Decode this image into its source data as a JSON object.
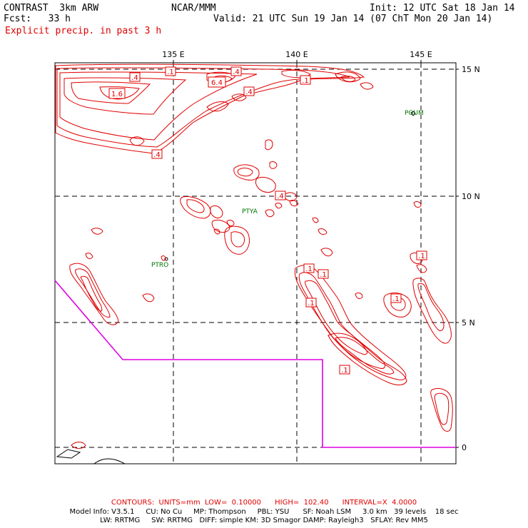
{
  "header": {
    "model": "CONTRAST  3km ARW",
    "fcst": "Fcst:   33 h",
    "center": "NCAR/MMM",
    "init": "Init: 12 UTC Sat 18 Jan 14",
    "valid": "Valid: 21 UTC Sun 19 Jan 14 (07 ChT Mon 20 Jan 14)",
    "field": "Explicit precip. in past 3 h"
  },
  "axes": {
    "lon_labels": [
      "135 E",
      "140 E",
      "145 E"
    ],
    "lat_labels": [
      "15 N",
      "10 N",
      "5 N",
      "0"
    ]
  },
  "stations": [
    "PGUM",
    "PTYA",
    "PTRO"
  ],
  "contour_labels": [
    ".4",
    ".1",
    ".4",
    "6.4",
    ".4",
    ".1",
    "1.6",
    ".4",
    ".4",
    ".1",
    ".1",
    ".1",
    ".1",
    ".1",
    ".1"
  ],
  "footer": {
    "contours": "CONTOURS:  UNITS=mm  LOW=  0.10000      HIGH=  102.40      INTERVAL=X  4.0000",
    "model_info_1": "Model Info: V3.5.1     CU: No Cu     MP: Thompson     PBL: YSU      SF: Noah LSM     3.0 km   39 levels    18 sec",
    "model_info_2": "LW: RRTMG     SW: RRTMG   DIFF: simple KM: 3D Smagor DAMP: Rayleigh3   SFLAY: Rev MM5"
  },
  "colors": {
    "precip": "#e00000",
    "station": "#007700",
    "boundary": "#e000e0",
    "grid": "#000000"
  }
}
